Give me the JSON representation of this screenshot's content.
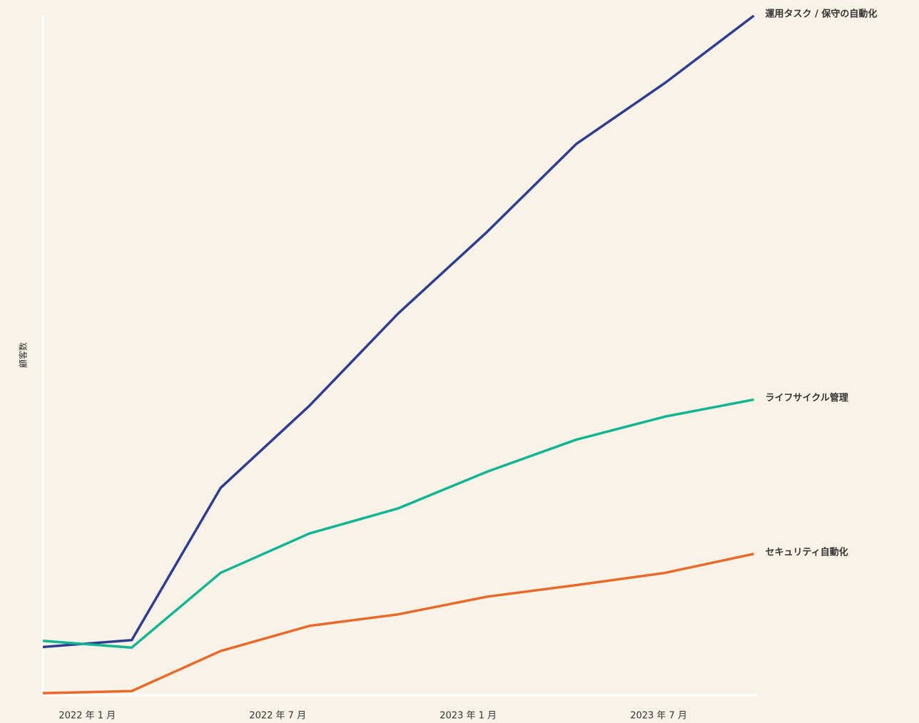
{
  "chart_data": {
    "type": "line",
    "y_label": "顧客数",
    "x": [
      -1.4,
      1.4,
      4.2,
      7.0,
      9.8,
      12.6,
      15.4,
      18.2,
      21.0
    ],
    "xlim": [
      -1.4,
      21.1
    ],
    "xticks": [
      {
        "value": 0,
        "label": "2022 年 1 月"
      },
      {
        "value": 6,
        "label": "2022 年 7 月"
      },
      {
        "value": 12,
        "label": "2023 年 1 月"
      },
      {
        "value": 18,
        "label": "2023 年 7 月"
      }
    ],
    "ylim": [
      0,
      100
    ],
    "series": [
      {
        "name": "運用タスク / 保守の自動化",
        "color": "#2e3d8f",
        "values": [
          7.1,
          8.1,
          30.5,
          42.6,
          56.2,
          68.2,
          81.1,
          90.1,
          100
        ]
      },
      {
        "name": "ライフサイクル管理",
        "color": "#12b593",
        "values": [
          8.0,
          7.0,
          18.0,
          23.8,
          27.5,
          32.9,
          37.6,
          41.0,
          43.5
        ]
      },
      {
        "name": "セキュリティ自動化",
        "color": "#e8692a",
        "values": [
          0.3,
          0.6,
          6.5,
          10.2,
          11.9,
          14.5,
          16.2,
          18.0,
          20.8
        ]
      }
    ]
  }
}
